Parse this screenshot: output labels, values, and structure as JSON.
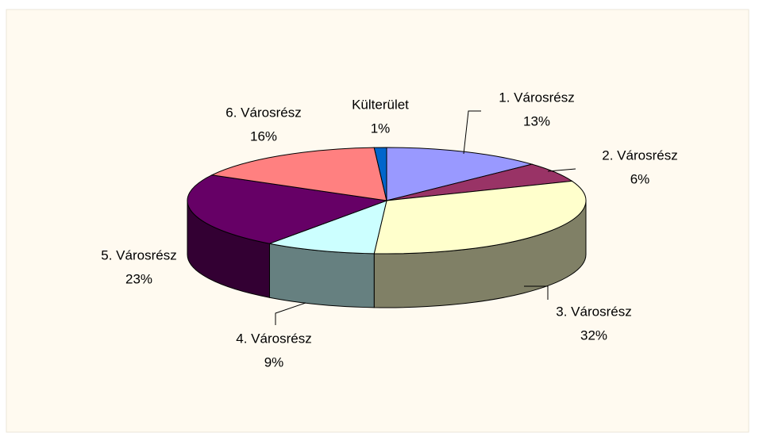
{
  "chart_data": {
    "type": "pie",
    "categories": [
      "1. Városrész",
      "2. Városrész",
      "3. Városrész",
      "4. Városrész",
      "5. Városrész",
      "6. Városrész",
      "Külterület"
    ],
    "values": [
      13,
      6,
      32,
      9,
      23,
      16,
      1
    ],
    "value_labels": [
      "13%",
      "6%",
      "32%",
      "9%",
      "23%",
      "16%",
      "1%"
    ],
    "colors": [
      "#9999ff",
      "#993366",
      "#ffffcc",
      "#ccffff",
      "#660066",
      "#ff8080",
      "#0066cc"
    ]
  }
}
